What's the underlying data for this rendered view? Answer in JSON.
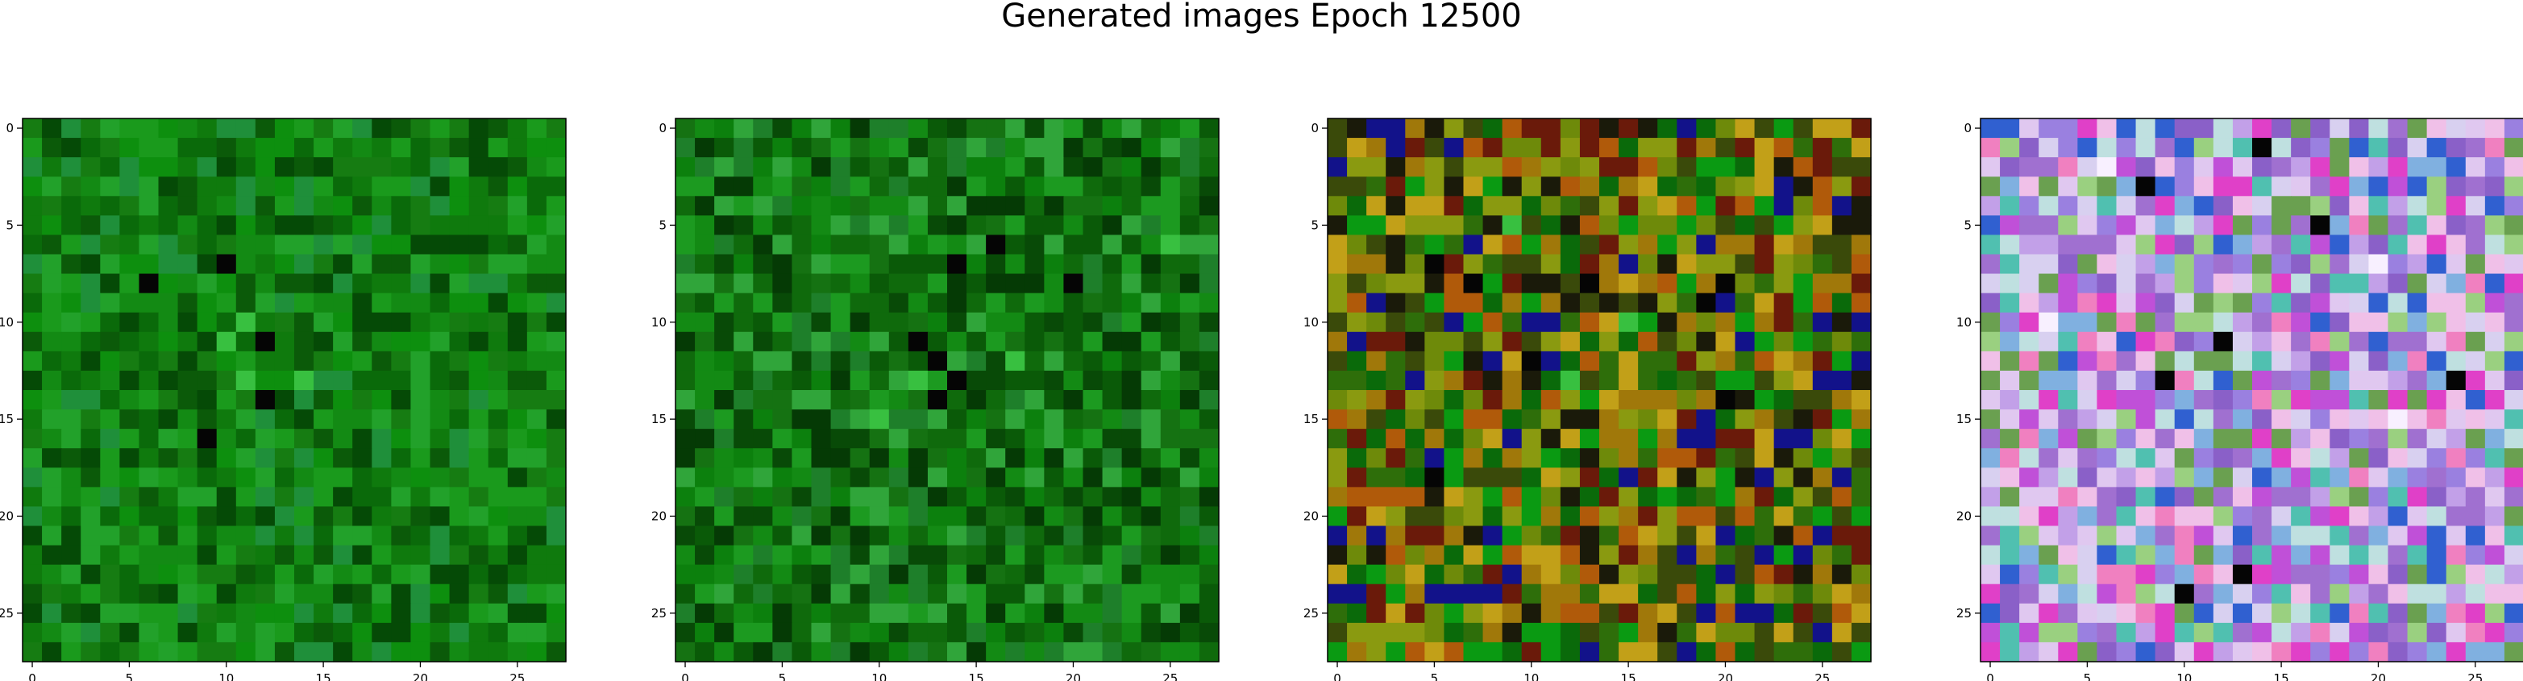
{
  "figure": {
    "title": "Generated images Epoch 12500"
  },
  "chart_data": [
    {
      "type": "heatmap",
      "title": "",
      "xlabel": "",
      "ylabel": "",
      "xlim": [
        -0.5,
        27.5
      ],
      "ylim": [
        27.5,
        -0.5
      ],
      "xticks": [
        0,
        5,
        10,
        15,
        20,
        25
      ],
      "yticks": [
        0,
        5,
        10,
        15,
        20,
        25
      ],
      "grid": false,
      "palette": [
        "#0f7a0d",
        "#0a6a0a",
        "#138a14",
        "#1a9a1c",
        "#0b5a09",
        "#1f8f3a",
        "#167c12",
        "#0d8f0e",
        "#22a12a",
        "#054a06"
      ],
      "dark_cells": [
        [
          7,
          10
        ],
        [
          8,
          6
        ],
        [
          11,
          12
        ],
        [
          14,
          12
        ],
        [
          16,
          9
        ]
      ],
      "bright_cells": [
        [
          13,
          11
        ],
        [
          10,
          11
        ],
        [
          13,
          14
        ],
        [
          11,
          10
        ]
      ]
    },
    {
      "type": "heatmap",
      "title": "",
      "xlabel": "",
      "ylabel": "",
      "xlim": [
        -0.5,
        27.5
      ],
      "ylim": [
        27.5,
        -0.5
      ],
      "xticks": [
        0,
        5,
        10,
        15,
        20,
        25
      ],
      "yticks": [
        0,
        5,
        10,
        15,
        20,
        25
      ],
      "grid": false,
      "palette": [
        "#0f6a0c",
        "#0a5a08",
        "#138a14",
        "#1c9a20",
        "#084a07",
        "#1e7f2a",
        "#157212",
        "#0c800d",
        "#30a53a",
        "#053a05"
      ],
      "dark_cells": [
        [
          12,
          13
        ],
        [
          13,
          14
        ],
        [
          11,
          12
        ],
        [
          14,
          13
        ],
        [
          7,
          14
        ],
        [
          8,
          20
        ],
        [
          6,
          16
        ]
      ],
      "bright_cells": [
        [
          13,
          12
        ],
        [
          12,
          17
        ],
        [
          15,
          10
        ],
        [
          6,
          25
        ]
      ]
    },
    {
      "type": "heatmap",
      "title": "",
      "xlabel": "",
      "ylabel": "",
      "xlim": [
        -0.5,
        27.5
      ],
      "ylim": [
        27.5,
        -0.5
      ],
      "xticks": [
        0,
        5,
        10,
        15,
        20,
        25
      ],
      "yticks": [
        0,
        5,
        10,
        15,
        20,
        25
      ],
      "grid": false,
      "palette": [
        "#6e8a0a",
        "#8a9a10",
        "#2e6e0a",
        "#0a6a0a",
        "#a0780a",
        "#c2a018",
        "#1a1a0a",
        "#6a1a0a",
        "#0a9a12",
        "#3a4a0a",
        "#b05a0a",
        "#12128a"
      ],
      "dark_cells": [
        [
          8,
          7
        ],
        [
          8,
          13
        ],
        [
          9,
          19
        ],
        [
          8,
          20
        ],
        [
          12,
          10
        ],
        [
          14,
          20
        ],
        [
          18,
          5
        ],
        [
          7,
          5
        ]
      ],
      "bright_cells": [
        [
          13,
          12
        ],
        [
          5,
          9
        ],
        [
          10,
          15
        ]
      ]
    },
    {
      "type": "heatmap",
      "title": "",
      "xlabel": "",
      "ylabel": "",
      "xlim": [
        -0.5,
        27.5
      ],
      "ylim": [
        27.5,
        -0.5
      ],
      "xticks": [
        0,
        5,
        10,
        15,
        20,
        25
      ],
      "yticks": [
        0,
        5,
        10,
        15,
        20,
        25
      ],
      "grid": false,
      "palette": [
        "#c2a0e8",
        "#9a80e0",
        "#e0c8f0",
        "#c050d8",
        "#80b0e0",
        "#6aa050",
        "#d8d0f0",
        "#a070d0",
        "#f0c0e8",
        "#50c0b0",
        "#8a60c8",
        "#e040c8",
        "#bfe0e0",
        "#3060d0",
        "#9ad080",
        "#f080c0"
      ],
      "dark_cells": [
        [
          1,
          14
        ],
        [
          3,
          8
        ],
        [
          5,
          17
        ],
        [
          11,
          12
        ],
        [
          13,
          9
        ],
        [
          24,
          10
        ],
        [
          23,
          13
        ],
        [
          13,
          24
        ]
      ],
      "bright_cells": [
        [
          2,
          6
        ],
        [
          7,
          20
        ],
        [
          10,
          3
        ],
        [
          15,
          21
        ]
      ]
    }
  ]
}
